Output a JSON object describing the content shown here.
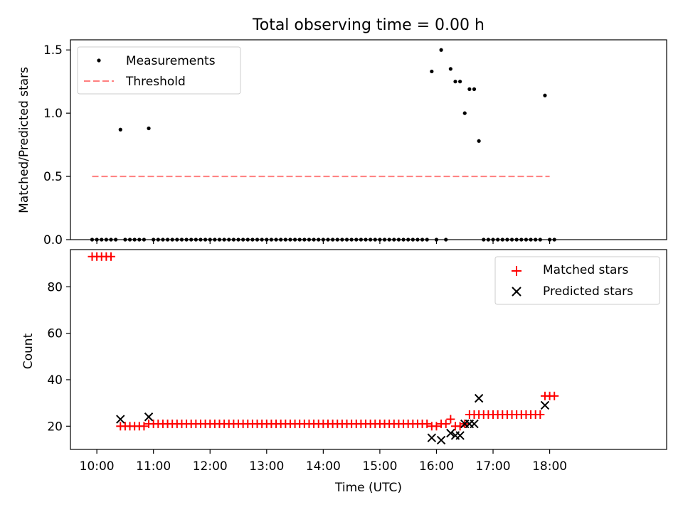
{
  "figure": {
    "title": "Total observing time = 0.00 h"
  },
  "chart_data": [
    {
      "type": "scatter",
      "ylabel": "Matched/Predicted stars",
      "xlabel": "",
      "xlim": [
        "09:32",
        "20:04"
      ],
      "ylim": [
        0,
        1.58
      ],
      "yticks": [
        "0.0",
        "0.5",
        "1.0",
        "1.5"
      ],
      "yticks_values": [
        0,
        0.5,
        1.0,
        1.5
      ],
      "legend": {
        "position": "top-left",
        "entries": [
          {
            "label": "Measurements",
            "marker": "dot",
            "color": "#000000"
          },
          {
            "label": "Threshold",
            "marker": "dashed-line",
            "color": "#ff7f7f"
          }
        ]
      },
      "series": [
        {
          "name": "Measurements",
          "color": "#000000",
          "points": [
            [
              "09:55",
              0
            ],
            [
              "10:00",
              0
            ],
            [
              "10:05",
              0
            ],
            [
              "10:10",
              0
            ],
            [
              "10:15",
              0
            ],
            [
              "10:20",
              0
            ],
            [
              "10:25",
              0.87
            ],
            [
              "10:30",
              0
            ],
            [
              "10:35",
              0
            ],
            [
              "10:40",
              0
            ],
            [
              "10:45",
              0
            ],
            [
              "10:50",
              0
            ],
            [
              "10:55",
              0.88
            ],
            [
              "11:00",
              0
            ],
            [
              "11:05",
              0
            ],
            [
              "11:10",
              0
            ],
            [
              "11:15",
              0
            ],
            [
              "11:20",
              0
            ],
            [
              "11:25",
              0
            ],
            [
              "11:30",
              0
            ],
            [
              "11:35",
              0
            ],
            [
              "11:40",
              0
            ],
            [
              "11:45",
              0
            ],
            [
              "11:50",
              0
            ],
            [
              "11:55",
              0
            ],
            [
              "12:00",
              0
            ],
            [
              "12:05",
              0
            ],
            [
              "12:10",
              0
            ],
            [
              "12:15",
              0
            ],
            [
              "12:20",
              0
            ],
            [
              "12:25",
              0
            ],
            [
              "12:30",
              0
            ],
            [
              "12:35",
              0
            ],
            [
              "12:40",
              0
            ],
            [
              "12:45",
              0
            ],
            [
              "12:50",
              0
            ],
            [
              "12:55",
              0
            ],
            [
              "13:00",
              0
            ],
            [
              "13:05",
              0
            ],
            [
              "13:10",
              0
            ],
            [
              "13:15",
              0
            ],
            [
              "13:20",
              0
            ],
            [
              "13:25",
              0
            ],
            [
              "13:30",
              0
            ],
            [
              "13:35",
              0
            ],
            [
              "13:40",
              0
            ],
            [
              "13:45",
              0
            ],
            [
              "13:50",
              0
            ],
            [
              "13:55",
              0
            ],
            [
              "14:00",
              0
            ],
            [
              "14:05",
              0
            ],
            [
              "14:10",
              0
            ],
            [
              "14:15",
              0
            ],
            [
              "14:20",
              0
            ],
            [
              "14:25",
              0
            ],
            [
              "14:30",
              0
            ],
            [
              "14:35",
              0
            ],
            [
              "14:40",
              0
            ],
            [
              "14:45",
              0
            ],
            [
              "14:50",
              0
            ],
            [
              "14:55",
              0
            ],
            [
              "15:00",
              0
            ],
            [
              "15:05",
              0
            ],
            [
              "15:10",
              0
            ],
            [
              "15:15",
              0
            ],
            [
              "15:20",
              0
            ],
            [
              "15:25",
              0
            ],
            [
              "15:30",
              0
            ],
            [
              "15:35",
              0
            ],
            [
              "15:40",
              0
            ],
            [
              "15:45",
              0
            ],
            [
              "15:50",
              0
            ],
            [
              "15:55",
              1.33
            ],
            [
              "16:00",
              0
            ],
            [
              "16:05",
              1.5
            ],
            [
              "16:10",
              0
            ],
            [
              "16:15",
              1.35
            ],
            [
              "16:20",
              1.25
            ],
            [
              "16:25",
              1.25
            ],
            [
              "16:30",
              1.0
            ],
            [
              "16:35",
              1.19
            ],
            [
              "16:40",
              1.19
            ],
            [
              "16:45",
              0.78
            ],
            [
              "16:50",
              0
            ],
            [
              "16:55",
              0
            ],
            [
              "17:00",
              0
            ],
            [
              "17:05",
              0
            ],
            [
              "17:10",
              0
            ],
            [
              "17:15",
              0
            ],
            [
              "17:20",
              0
            ],
            [
              "17:25",
              0
            ],
            [
              "17:30",
              0
            ],
            [
              "17:35",
              0
            ],
            [
              "17:40",
              0
            ],
            [
              "17:45",
              0
            ],
            [
              "17:50",
              0
            ],
            [
              "17:55",
              1.14
            ],
            [
              "18:00",
              0
            ],
            [
              "18:05",
              0
            ]
          ]
        },
        {
          "name": "Threshold",
          "color": "#ff7f7f",
          "line": [
            [
              "09:55",
              0.5
            ],
            [
              "18:00",
              0.5
            ]
          ]
        }
      ]
    },
    {
      "type": "scatter",
      "ylabel": "Count",
      "xlabel": "Time (UTC)",
      "xlim": [
        "09:32",
        "20:04"
      ],
      "ylim": [
        10,
        96
      ],
      "xticks": [
        "10:00",
        "11:00",
        "12:00",
        "13:00",
        "14:00",
        "15:00",
        "16:00",
        "17:00",
        "18:00"
      ],
      "yticks": [
        "20",
        "40",
        "60",
        "80"
      ],
      "yticks_values": [
        20,
        40,
        60,
        80
      ],
      "legend": {
        "position": "top-right",
        "entries": [
          {
            "label": "Matched stars",
            "marker": "plus",
            "color": "#ff0000"
          },
          {
            "label": "Predicted stars",
            "marker": "x",
            "color": "#000000"
          }
        ]
      },
      "series": [
        {
          "name": "Matched stars",
          "color": "#ff0000",
          "marker": "plus",
          "points": [
            [
              "09:55",
              93
            ],
            [
              "10:00",
              93
            ],
            [
              "10:05",
              93
            ],
            [
              "10:10",
              93
            ],
            [
              "10:15",
              93
            ],
            [
              "10:25",
              20
            ],
            [
              "10:30",
              20
            ],
            [
              "10:35",
              20
            ],
            [
              "10:40",
              20
            ],
            [
              "10:45",
              20
            ],
            [
              "10:50",
              20
            ],
            [
              "10:55",
              21
            ],
            [
              "11:00",
              21
            ],
            [
              "11:05",
              21
            ],
            [
              "11:10",
              21
            ],
            [
              "11:15",
              21
            ],
            [
              "11:20",
              21
            ],
            [
              "11:25",
              21
            ],
            [
              "11:30",
              21
            ],
            [
              "11:35",
              21
            ],
            [
              "11:40",
              21
            ],
            [
              "11:45",
              21
            ],
            [
              "11:50",
              21
            ],
            [
              "11:55",
              21
            ],
            [
              "12:00",
              21
            ],
            [
              "12:05",
              21
            ],
            [
              "12:10",
              21
            ],
            [
              "12:15",
              21
            ],
            [
              "12:20",
              21
            ],
            [
              "12:25",
              21
            ],
            [
              "12:30",
              21
            ],
            [
              "12:35",
              21
            ],
            [
              "12:40",
              21
            ],
            [
              "12:45",
              21
            ],
            [
              "12:50",
              21
            ],
            [
              "12:55",
              21
            ],
            [
              "13:00",
              21
            ],
            [
              "13:05",
              21
            ],
            [
              "13:10",
              21
            ],
            [
              "13:15",
              21
            ],
            [
              "13:20",
              21
            ],
            [
              "13:25",
              21
            ],
            [
              "13:30",
              21
            ],
            [
              "13:35",
              21
            ],
            [
              "13:40",
              21
            ],
            [
              "13:45",
              21
            ],
            [
              "13:50",
              21
            ],
            [
              "13:55",
              21
            ],
            [
              "14:00",
              21
            ],
            [
              "14:05",
              21
            ],
            [
              "14:10",
              21
            ],
            [
              "14:15",
              21
            ],
            [
              "14:20",
              21
            ],
            [
              "14:25",
              21
            ],
            [
              "14:30",
              21
            ],
            [
              "14:35",
              21
            ],
            [
              "14:40",
              21
            ],
            [
              "14:45",
              21
            ],
            [
              "14:50",
              21
            ],
            [
              "14:55",
              21
            ],
            [
              "15:00",
              21
            ],
            [
              "15:05",
              21
            ],
            [
              "15:10",
              21
            ],
            [
              "15:15",
              21
            ],
            [
              "15:20",
              21
            ],
            [
              "15:25",
              21
            ],
            [
              "15:30",
              21
            ],
            [
              "15:35",
              21
            ],
            [
              "15:40",
              21
            ],
            [
              "15:45",
              21
            ],
            [
              "15:50",
              21
            ],
            [
              "15:55",
              20
            ],
            [
              "16:00",
              20
            ],
            [
              "16:05",
              21
            ],
            [
              "16:10",
              21
            ],
            [
              "16:15",
              23
            ],
            [
              "16:20",
              20
            ],
            [
              "16:25",
              20
            ],
            [
              "16:30",
              21
            ],
            [
              "16:35",
              25
            ],
            [
              "16:40",
              25
            ],
            [
              "16:45",
              25
            ],
            [
              "16:50",
              25
            ],
            [
              "16:55",
              25
            ],
            [
              "17:00",
              25
            ],
            [
              "17:05",
              25
            ],
            [
              "17:10",
              25
            ],
            [
              "17:15",
              25
            ],
            [
              "17:20",
              25
            ],
            [
              "17:25",
              25
            ],
            [
              "17:30",
              25
            ],
            [
              "17:35",
              25
            ],
            [
              "17:40",
              25
            ],
            [
              "17:45",
              25
            ],
            [
              "17:50",
              25
            ],
            [
              "17:55",
              33
            ],
            [
              "18:00",
              33
            ],
            [
              "18:05",
              33
            ]
          ]
        },
        {
          "name": "Predicted stars",
          "color": "#000000",
          "marker": "x",
          "points": [
            [
              "10:25",
              23
            ],
            [
              "10:55",
              24
            ],
            [
              "15:55",
              15
            ],
            [
              "16:05",
              14
            ],
            [
              "16:15",
              17
            ],
            [
              "16:20",
              16
            ],
            [
              "16:25",
              16
            ],
            [
              "16:30",
              21
            ],
            [
              "16:35",
              21
            ],
            [
              "16:40",
              21
            ],
            [
              "16:45",
              32
            ],
            [
              "17:55",
              29
            ]
          ]
        }
      ]
    }
  ]
}
